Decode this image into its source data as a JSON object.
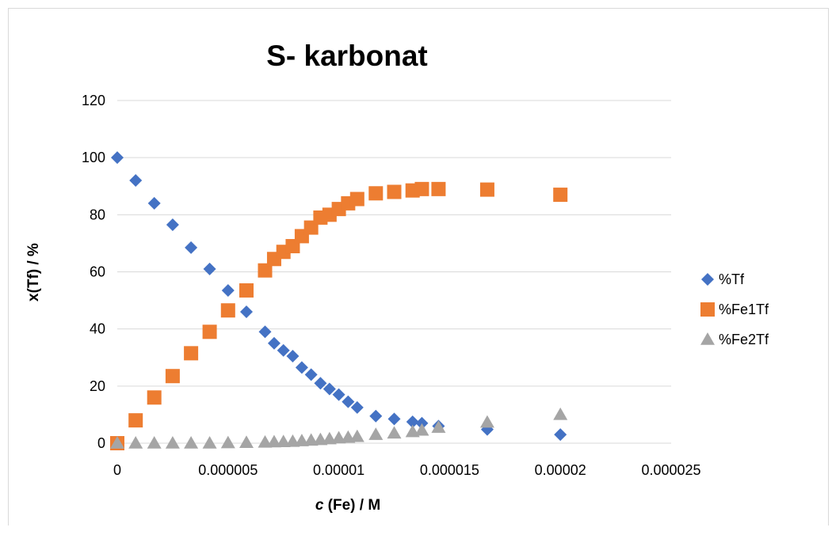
{
  "chart_data": {
    "type": "scatter",
    "title": "S- karbonat",
    "xlabel_italic": "c",
    "xlabel_rest": " (Fe) / M",
    "ylabel": "x(Tf) / %",
    "xlim": [
      0,
      2.5e-05
    ],
    "ylim": [
      0,
      120
    ],
    "x_ticks": [
      "0",
      "0.000005",
      "0.00001",
      "0.000015",
      "0.00002",
      "0.000025"
    ],
    "x_tick_values": [
      0,
      5e-06,
      1e-05,
      1.5e-05,
      2e-05,
      2.5e-05
    ],
    "y_ticks": [
      "0",
      "20",
      "40",
      "60",
      "80",
      "100",
      "120"
    ],
    "y_tick_values": [
      0,
      20,
      40,
      60,
      80,
      100,
      120
    ],
    "grid": "horizontal",
    "legend_position": "right",
    "series": [
      {
        "name": "%Tf",
        "marker": "diamond",
        "color": "#4472C4",
        "points": [
          [
            0,
            100
          ],
          [
            8.3e-07,
            92
          ],
          [
            1.67e-06,
            84
          ],
          [
            2.5e-06,
            76.5
          ],
          [
            3.33e-06,
            68.5
          ],
          [
            4.17e-06,
            61
          ],
          [
            5e-06,
            53.5
          ],
          [
            5.83e-06,
            46
          ],
          [
            6.67e-06,
            39
          ],
          [
            7.08e-06,
            35
          ],
          [
            7.5e-06,
            32.5
          ],
          [
            7.92e-06,
            30.5
          ],
          [
            8.33e-06,
            26.5
          ],
          [
            8.75e-06,
            24
          ],
          [
            9.17e-06,
            21
          ],
          [
            9.58e-06,
            19
          ],
          [
            1e-05,
            17
          ],
          [
            1.042e-05,
            14.5
          ],
          [
            1.083e-05,
            12.5
          ],
          [
            1.167e-05,
            9.5
          ],
          [
            1.25e-05,
            8.5
          ],
          [
            1.333e-05,
            7.5
          ],
          [
            1.375e-05,
            7
          ],
          [
            1.45e-05,
            6
          ],
          [
            1.67e-05,
            4.8
          ],
          [
            2e-05,
            3
          ]
        ]
      },
      {
        "name": "%Fe1Tf",
        "marker": "square",
        "color": "#ED7D31",
        "points": [
          [
            0,
            0
          ],
          [
            8.3e-07,
            8
          ],
          [
            1.67e-06,
            16
          ],
          [
            2.5e-06,
            23.5
          ],
          [
            3.33e-06,
            31.5
          ],
          [
            4.17e-06,
            39
          ],
          [
            5e-06,
            46.5
          ],
          [
            5.83e-06,
            53.5
          ],
          [
            6.67e-06,
            60.5
          ],
          [
            7.08e-06,
            64.5
          ],
          [
            7.5e-06,
            67
          ],
          [
            7.92e-06,
            69
          ],
          [
            8.33e-06,
            72.5
          ],
          [
            8.75e-06,
            75.5
          ],
          [
            9.17e-06,
            79
          ],
          [
            9.58e-06,
            80
          ],
          [
            1e-05,
            82
          ],
          [
            1.042e-05,
            84
          ],
          [
            1.083e-05,
            85.5
          ],
          [
            1.167e-05,
            87.5
          ],
          [
            1.25e-05,
            88
          ],
          [
            1.333e-05,
            88.5
          ],
          [
            1.375e-05,
            89
          ],
          [
            1.45e-05,
            89
          ],
          [
            1.67e-05,
            88.8
          ],
          [
            2e-05,
            87
          ]
        ]
      },
      {
        "name": "%Fe2Tf",
        "marker": "triangle",
        "color": "#A5A5A5",
        "points": [
          [
            0,
            0
          ],
          [
            8.3e-07,
            0
          ],
          [
            1.67e-06,
            0
          ],
          [
            2.5e-06,
            0
          ],
          [
            3.33e-06,
            0
          ],
          [
            4.17e-06,
            0
          ],
          [
            5e-06,
            0.1
          ],
          [
            5.83e-06,
            0.2
          ],
          [
            6.67e-06,
            0.3
          ],
          [
            7.08e-06,
            0.4
          ],
          [
            7.5e-06,
            0.5
          ],
          [
            7.92e-06,
            0.6
          ],
          [
            8.33e-06,
            0.8
          ],
          [
            8.75e-06,
            1
          ],
          [
            9.17e-06,
            1.2
          ],
          [
            9.58e-06,
            1.5
          ],
          [
            1e-05,
            1.8
          ],
          [
            1.042e-05,
            2
          ],
          [
            1.083e-05,
            2.3
          ],
          [
            1.167e-05,
            3
          ],
          [
            1.25e-05,
            3.5
          ],
          [
            1.333e-05,
            4
          ],
          [
            1.375e-05,
            4.5
          ],
          [
            1.45e-05,
            5.5
          ],
          [
            1.67e-05,
            7.3
          ],
          [
            2e-05,
            10
          ]
        ]
      }
    ]
  }
}
